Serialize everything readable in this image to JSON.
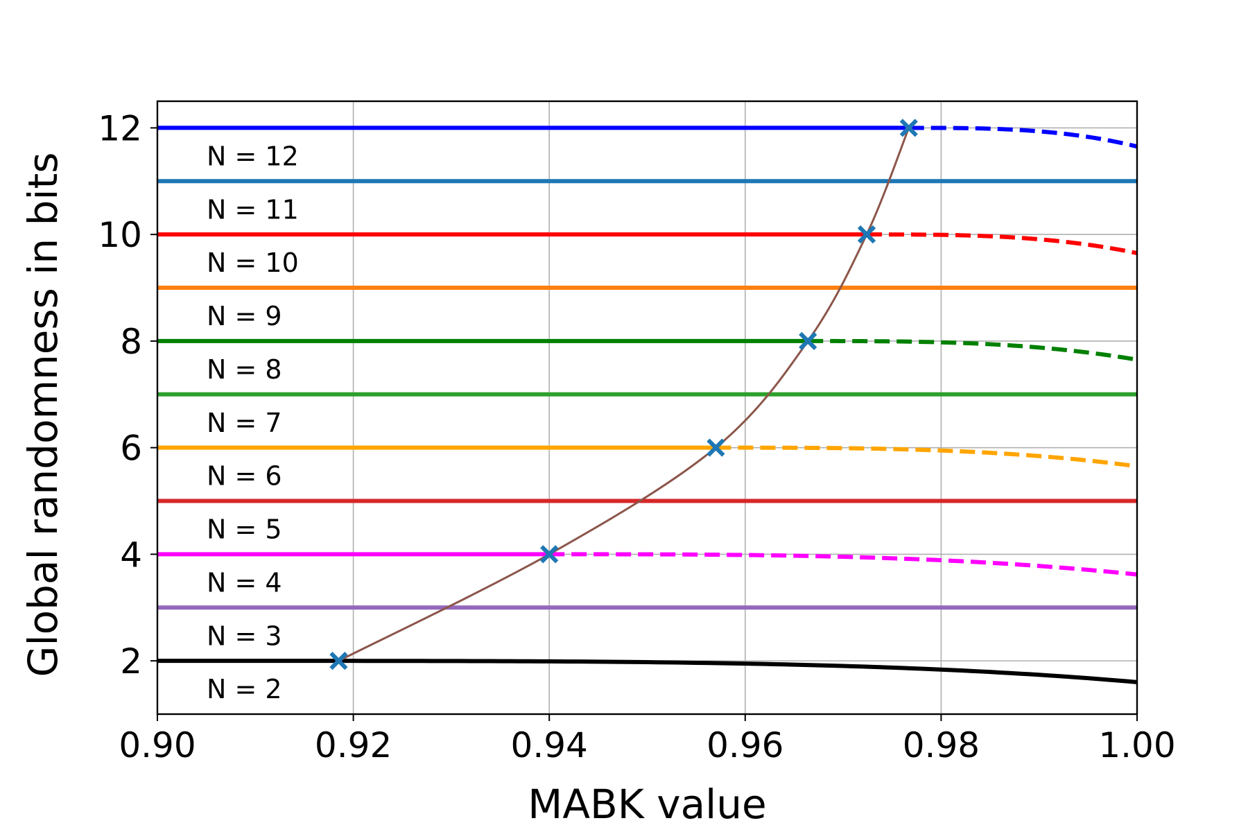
{
  "chart_data": {
    "type": "line",
    "title": "",
    "xlabel": "MABK value",
    "ylabel": "Global randomness in bits",
    "xlim": [
      0.9,
      1.0
    ],
    "ylim": [
      1.0,
      12.5
    ],
    "xticks": [
      0.9,
      0.92,
      0.94,
      0.96,
      0.98,
      1.0
    ],
    "xtick_labels": [
      "0.90",
      "0.92",
      "0.94",
      "0.96",
      "0.98",
      "1.00"
    ],
    "yticks": [
      2,
      4,
      6,
      8,
      10,
      12
    ],
    "ytick_labels": [
      "2",
      "4",
      "6",
      "8",
      "10",
      "12"
    ],
    "grid": true,
    "legend": "none",
    "levels": [
      {
        "N": 12,
        "label": "N = 12",
        "y": 12,
        "color": "#0000ff",
        "threshold": 0.9767,
        "end_value": 11.65,
        "dashed_after_threshold": true
      },
      {
        "N": 11,
        "label": "N = 11",
        "y": 11,
        "color": "#1f77b4",
        "dashed_after_threshold": false
      },
      {
        "N": 10,
        "label": "N = 10",
        "y": 10,
        "color": "#ff0000",
        "threshold": 0.9724,
        "end_value": 9.65,
        "dashed_after_threshold": true
      },
      {
        "N": 9,
        "label": "N = 9",
        "y": 9,
        "color": "#ff7f0e",
        "dashed_after_threshold": false
      },
      {
        "N": 8,
        "label": "N = 8",
        "y": 8,
        "color": "#008000",
        "threshold": 0.9664,
        "end_value": 7.65,
        "dashed_after_threshold": true
      },
      {
        "N": 7,
        "label": "N = 7",
        "y": 7,
        "color": "#2ca02c",
        "dashed_after_threshold": false
      },
      {
        "N": 6,
        "label": "N = 6",
        "y": 6,
        "color": "#ffa500",
        "threshold": 0.957,
        "end_value": 5.65,
        "dashed_after_threshold": true
      },
      {
        "N": 5,
        "label": "N = 5",
        "y": 5,
        "color": "#d62728",
        "dashed_after_threshold": false
      },
      {
        "N": 4,
        "label": "N = 4",
        "y": 4,
        "color": "#ff00ff",
        "threshold": 0.94,
        "end_value": 3.62,
        "dashed_after_threshold": true
      },
      {
        "N": 3,
        "label": "N = 3",
        "y": 3,
        "color": "#9467bd",
        "dashed_after_threshold": false
      },
      {
        "N": 2,
        "label": "N = 2",
        "y": 2,
        "color": "#000000",
        "threshold": 0.9185,
        "end_value": 1.6,
        "dashed_after_threshold": false
      }
    ],
    "threshold_curve": {
      "color": "#8c564b",
      "marker_color": "#1f77b4",
      "marker": "x",
      "points": [
        {
          "x": 0.9185,
          "y": 2
        },
        {
          "x": 0.94,
          "y": 4
        },
        {
          "x": 0.957,
          "y": 6
        },
        {
          "x": 0.9664,
          "y": 8
        },
        {
          "x": 0.9724,
          "y": 10
        },
        {
          "x": 0.9767,
          "y": 12
        }
      ]
    }
  }
}
